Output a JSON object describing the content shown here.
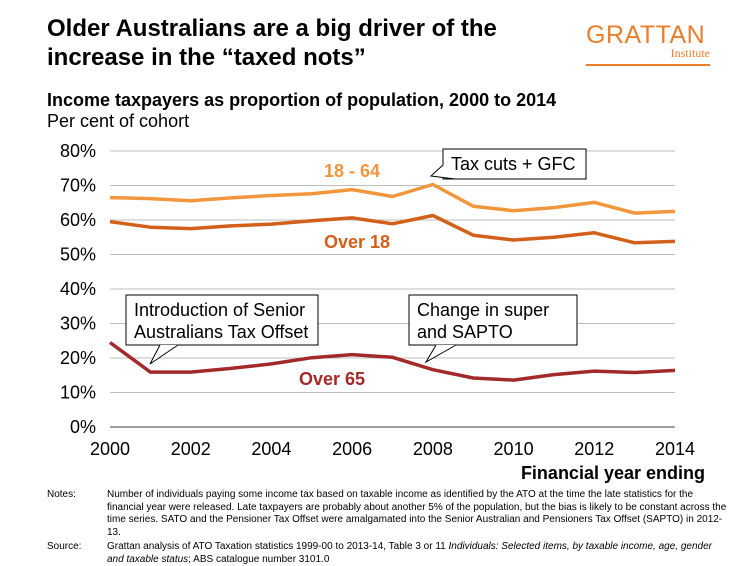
{
  "header": {
    "headline": "Older Australians are a big driver of the increase in the “taxed nots”",
    "logo_word": "GRATTAN",
    "logo_sub": "Institute"
  },
  "chart_data": {
    "type": "line",
    "title": "Income taxpayers as proportion of population, 2000 to 2014",
    "subtitle": "Per cent of cohort",
    "xlabel": "Financial year ending",
    "ylabel": "",
    "xlim": [
      2000,
      2014
    ],
    "ylim": [
      0,
      80
    ],
    "x_ticks": [
      "2000",
      "2002",
      "2004",
      "2006",
      "2008",
      "2010",
      "2012",
      "2014"
    ],
    "y_ticks": [
      "0%",
      "10%",
      "20%",
      "30%",
      "40%",
      "50%",
      "60%",
      "70%",
      "80%"
    ],
    "grid": true,
    "x": [
      2000,
      2001,
      2002,
      2003,
      2004,
      2005,
      2006,
      2007,
      2008,
      2009,
      2010,
      2011,
      2012,
      2013,
      2014
    ],
    "series": [
      {
        "name": "18 - 64",
        "color": "#F0963C",
        "values": [
          66.5,
          66.2,
          65.6,
          66.4,
          67.1,
          67.6,
          68.8,
          66.8,
          70.3,
          64.0,
          62.7,
          63.6,
          65.1,
          62.0,
          62.5
        ]
      },
      {
        "name": "Over 18",
        "color": "#D2601A",
        "values": [
          59.5,
          57.9,
          57.5,
          58.3,
          58.8,
          59.8,
          60.6,
          58.9,
          61.3,
          55.6,
          54.2,
          55.0,
          56.3,
          53.4,
          53.8
        ]
      },
      {
        "name": "Over 65",
        "color": "#A22A2A",
        "values": [
          24.5,
          15.9,
          15.9,
          17.0,
          18.3,
          20.1,
          21.0,
          20.2,
          16.6,
          14.2,
          13.6,
          15.2,
          16.2,
          15.8,
          16.4
        ]
      }
    ],
    "annotations": [
      {
        "text": "Tax cuts + GFC"
      },
      {
        "text": "Introduction of Senior Australians Tax Offset"
      },
      {
        "text": "Change in super and SAPTO"
      }
    ]
  },
  "notes": {
    "label": "Notes:",
    "text": "Number of individuals paying some income tax based on taxable income as identified by the ATO at the time the late statistics for the financial year were released. Late taxpayers are probably about another 5% of the population, but the bias is likely to be constant across the time series. SATO and the Pensioner Tax Offset were amalgamated into the Senior Australian and Pensioners Tax Offset (SAPTO) in 2012-13.",
    "source_label": "Source:",
    "source_text_1": "Grattan analysis of ATO Taxation statistics 1999-00 to 2013-14, Table 3 or 11 ",
    "source_italic": "Individuals: Selected items, by taxable income, age, gender and taxable status",
    "source_text_2": "; ABS catalogue number 3101.0"
  }
}
